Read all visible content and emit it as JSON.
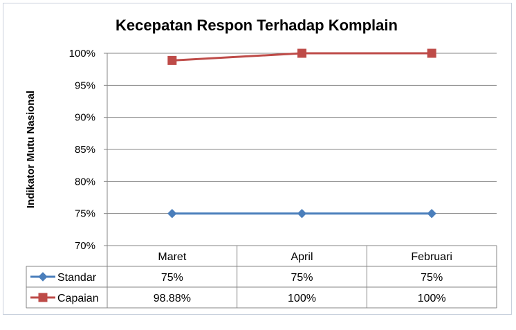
{
  "chart_data": {
    "type": "line",
    "title": "Kecepatan Respon Terhadap Komplain",
    "xlabel": "",
    "ylabel": "Indikator Mutu Nasional",
    "categories": [
      "Maret",
      "April",
      "Februari"
    ],
    "ylim": [
      70,
      100
    ],
    "yticks": [
      70,
      75,
      80,
      85,
      90,
      95,
      100
    ],
    "ytick_labels": [
      "70%",
      "75%",
      "80%",
      "85%",
      "90%",
      "95%",
      "100%"
    ],
    "grid": true,
    "legend": "data-table",
    "series": [
      {
        "name": "Standar",
        "values": [
          75,
          75,
          75
        ],
        "labels": [
          "75%",
          "75%",
          "75%"
        ],
        "color": "#4a7ebb",
        "marker": "diamond"
      },
      {
        "name": "Capaian",
        "values": [
          98.88,
          100,
          100
        ],
        "labels": [
          "98.88%",
          "100%",
          "100%"
        ],
        "color": "#be4b48",
        "marker": "square"
      }
    ]
  }
}
